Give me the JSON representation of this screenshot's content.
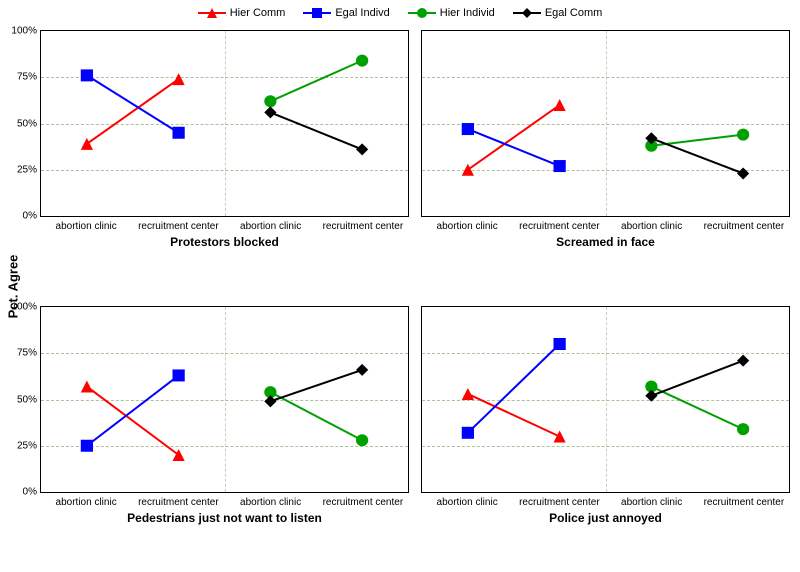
{
  "yaxis_label": "Pct. Agree",
  "legend": [
    {
      "key": "hc",
      "label": "Hier Comm",
      "color": "#ff0000",
      "marker": "triangle"
    },
    {
      "key": "ei",
      "label": "Egal Indivd",
      "color": "#0000ff",
      "marker": "square"
    },
    {
      "key": "hi",
      "label": "Hier Individ",
      "color": "#00a000",
      "marker": "circle"
    },
    {
      "key": "ec",
      "label": "Egal Comm",
      "color": "#000000",
      "marker": "diamond"
    }
  ],
  "categories": [
    "abortion clinic",
    "recruitment center",
    "abortion clinic",
    "recruitment center"
  ],
  "y": {
    "min": 0,
    "max": 100,
    "ticks": [
      0,
      25,
      50,
      75,
      100
    ]
  },
  "grid_color": "#8aa86f",
  "line_width": 2,
  "marker_size": 6,
  "panels": [
    {
      "title": "Protestors blocked",
      "series": [
        {
          "key": "hc",
          "pts": [
            [
              0,
              39
            ],
            [
              1,
              74
            ]
          ]
        },
        {
          "key": "ei",
          "pts": [
            [
              0,
              76
            ],
            [
              1,
              45
            ]
          ]
        },
        {
          "key": "hi",
          "pts": [
            [
              2,
              62
            ],
            [
              3,
              84
            ]
          ]
        },
        {
          "key": "ec",
          "pts": [
            [
              2,
              56
            ],
            [
              3,
              36
            ]
          ]
        }
      ]
    },
    {
      "title": "Screamed in face",
      "series": [
        {
          "key": "hc",
          "pts": [
            [
              0,
              25
            ],
            [
              1,
              60
            ]
          ]
        },
        {
          "key": "ei",
          "pts": [
            [
              0,
              47
            ],
            [
              1,
              27
            ]
          ]
        },
        {
          "key": "hi",
          "pts": [
            [
              2,
              38
            ],
            [
              3,
              44
            ]
          ]
        },
        {
          "key": "ec",
          "pts": [
            [
              2,
              42
            ],
            [
              3,
              23
            ]
          ]
        }
      ]
    },
    {
      "title": "Pedestrians just not want to listen",
      "series": [
        {
          "key": "hc",
          "pts": [
            [
              0,
              57
            ],
            [
              1,
              20
            ]
          ]
        },
        {
          "key": "ei",
          "pts": [
            [
              0,
              25
            ],
            [
              1,
              63
            ]
          ]
        },
        {
          "key": "hi",
          "pts": [
            [
              2,
              54
            ],
            [
              3,
              28
            ]
          ]
        },
        {
          "key": "ec",
          "pts": [
            [
              2,
              49
            ],
            [
              3,
              66
            ]
          ]
        }
      ]
    },
    {
      "title": "Police just annoyed",
      "series": [
        {
          "key": "hc",
          "pts": [
            [
              0,
              53
            ],
            [
              1,
              30
            ]
          ]
        },
        {
          "key": "ei",
          "pts": [
            [
              0,
              32
            ],
            [
              1,
              80
            ]
          ]
        },
        {
          "key": "hi",
          "pts": [
            [
              2,
              57
            ],
            [
              3,
              34
            ]
          ]
        },
        {
          "key": "ec",
          "pts": [
            [
              2,
              52
            ],
            [
              3,
              71
            ]
          ]
        }
      ]
    }
  ]
}
